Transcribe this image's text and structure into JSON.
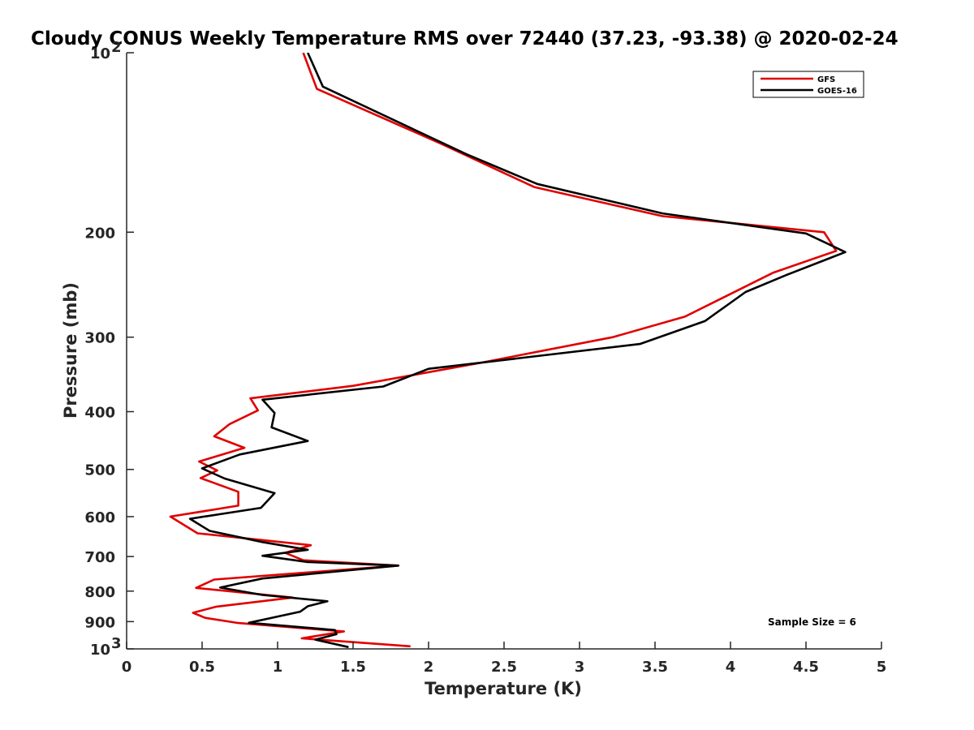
{
  "chart_data": {
    "type": "line",
    "title": "Cloudy CONUS Weekly Temperature RMS over 72440 (37.23, -93.38) @ 2020-02-24",
    "xlabel": "Temperature (K)",
    "ylabel": "Pressure (mb)",
    "xlim": [
      0,
      5
    ],
    "ylim": [
      100,
      1000
    ],
    "y_scale": "log",
    "y_reversed": true,
    "grid": false,
    "legend_position": "top-right",
    "x_ticks": [
      "0",
      "0.5",
      "1",
      "1.5",
      "2",
      "2.5",
      "3",
      "3.5",
      "4",
      "4.5",
      "5"
    ],
    "x_tick_values": [
      0,
      0.5,
      1,
      1.5,
      2,
      2.5,
      3,
      3.5,
      4,
      4.5,
      5
    ],
    "y_ticks": [
      {
        "value": 100,
        "base": "10",
        "exp": "2"
      },
      {
        "value": 200,
        "label": "200"
      },
      {
        "value": 300,
        "label": "300"
      },
      {
        "value": 400,
        "label": "400"
      },
      {
        "value": 500,
        "label": "500"
      },
      {
        "value": 600,
        "label": "600"
      },
      {
        "value": 700,
        "label": "700"
      },
      {
        "value": 800,
        "label": "800"
      },
      {
        "value": 900,
        "label": "900"
      },
      {
        "value": 1000,
        "base": "10",
        "exp": "3"
      }
    ],
    "series": [
      {
        "name": "GFS",
        "color": "#e00000",
        "points": [
          [
            1.17,
            100
          ],
          [
            1.26,
            115
          ],
          [
            2.08,
            142
          ],
          [
            2.7,
            168
          ],
          [
            3.55,
            188
          ],
          [
            4.62,
            200
          ],
          [
            4.7,
            215
          ],
          [
            4.28,
            234
          ],
          [
            3.7,
            277
          ],
          [
            3.22,
            300
          ],
          [
            2.35,
            331
          ],
          [
            1.5,
            362
          ],
          [
            0.82,
            380
          ],
          [
            0.87,
            398
          ],
          [
            0.68,
            420
          ],
          [
            0.58,
            440
          ],
          [
            0.78,
            460
          ],
          [
            0.48,
            485
          ],
          [
            0.6,
            502
          ],
          [
            0.49,
            517
          ],
          [
            0.74,
            545
          ],
          [
            0.74,
            575
          ],
          [
            0.29,
            600
          ],
          [
            0.47,
            640
          ],
          [
            1.22,
            670
          ],
          [
            1.05,
            690
          ],
          [
            1.17,
            710
          ],
          [
            1.8,
            725
          ],
          [
            0.58,
            765
          ],
          [
            0.46,
            790
          ],
          [
            1.1,
            820
          ],
          [
            0.59,
            850
          ],
          [
            0.44,
            870
          ],
          [
            0.52,
            887
          ],
          [
            0.74,
            905
          ],
          [
            1.44,
            935
          ],
          [
            1.16,
            960
          ],
          [
            1.88,
            990
          ]
        ]
      },
      {
        "name": "GOES-16",
        "color": "#000000",
        "points": [
          [
            1.2,
            100
          ],
          [
            1.3,
            114
          ],
          [
            2.25,
            148
          ],
          [
            2.72,
            166
          ],
          [
            3.55,
            186
          ],
          [
            4.5,
            201
          ],
          [
            4.76,
            216
          ],
          [
            4.37,
            236
          ],
          [
            4.1,
            252
          ],
          [
            3.83,
            282
          ],
          [
            3.4,
            308
          ],
          [
            2.0,
            339
          ],
          [
            1.7,
            363
          ],
          [
            0.9,
            382
          ],
          [
            0.98,
            402
          ],
          [
            0.96,
            425
          ],
          [
            1.2,
            448
          ],
          [
            0.75,
            472
          ],
          [
            0.5,
            498
          ],
          [
            0.65,
            518
          ],
          [
            0.98,
            548
          ],
          [
            0.89,
            580
          ],
          [
            0.42,
            605
          ],
          [
            0.55,
            634
          ],
          [
            0.9,
            662
          ],
          [
            1.2,
            682
          ],
          [
            0.9,
            698
          ],
          [
            1.2,
            715
          ],
          [
            1.8,
            725
          ],
          [
            0.9,
            762
          ],
          [
            0.62,
            789
          ],
          [
            0.9,
            812
          ],
          [
            1.33,
            832
          ],
          [
            1.2,
            848
          ],
          [
            1.15,
            866
          ],
          [
            0.81,
            904
          ],
          [
            1.38,
            930
          ],
          [
            1.39,
            945
          ],
          [
            1.25,
            965
          ],
          [
            1.47,
            993
          ]
        ]
      }
    ],
    "annotations": [
      "Sample Size = 6"
    ]
  }
}
